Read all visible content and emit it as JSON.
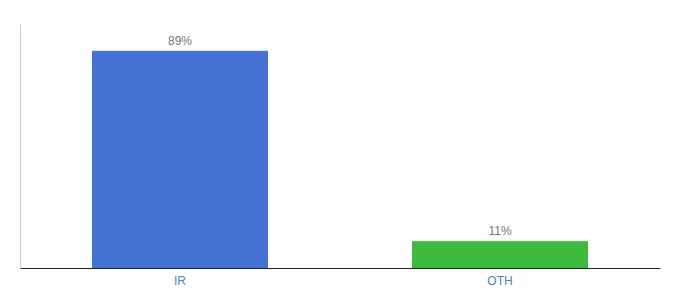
{
  "chart_data": {
    "type": "bar",
    "categories": [
      "IR",
      "OTH"
    ],
    "values": [
      89,
      11
    ],
    "value_labels": [
      "89%",
      "11%"
    ],
    "colors": [
      "#4472d4",
      "#3dbb3d"
    ],
    "ylim": [
      0,
      100
    ],
    "data_labels": true,
    "tick_labels": "x",
    "grid": false
  }
}
